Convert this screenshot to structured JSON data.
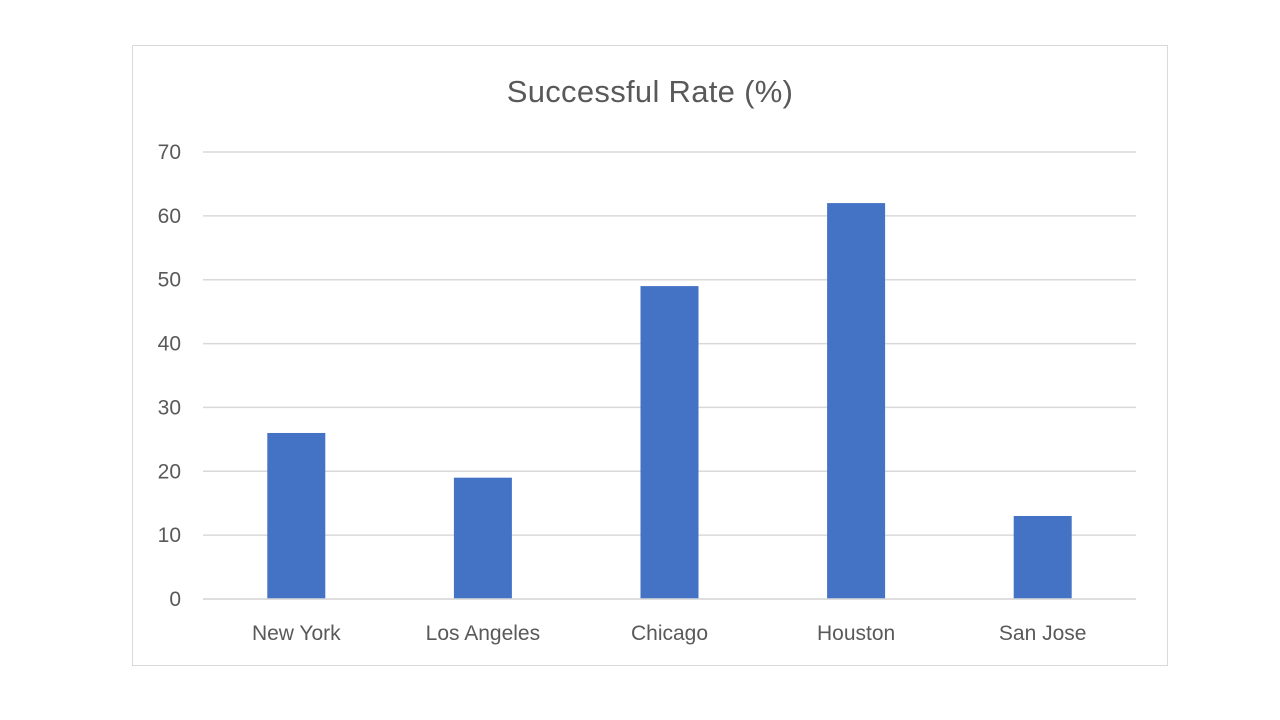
{
  "chart_data": {
    "type": "bar",
    "title": "Successful Rate (%)",
    "categories": [
      "New York",
      "Los Angeles",
      "Chicago",
      "Houston",
      "San Jose"
    ],
    "values": [
      26,
      19,
      49,
      62,
      13
    ],
    "xlabel": "",
    "ylabel": "",
    "ylim": [
      0,
      70
    ],
    "yticks": [
      0,
      10,
      20,
      30,
      40,
      50,
      60,
      70
    ],
    "grid": true,
    "legend": "none",
    "bar_color": "#4472c4",
    "grid_color": "#d9d9d9",
    "text_color": "#595959"
  }
}
